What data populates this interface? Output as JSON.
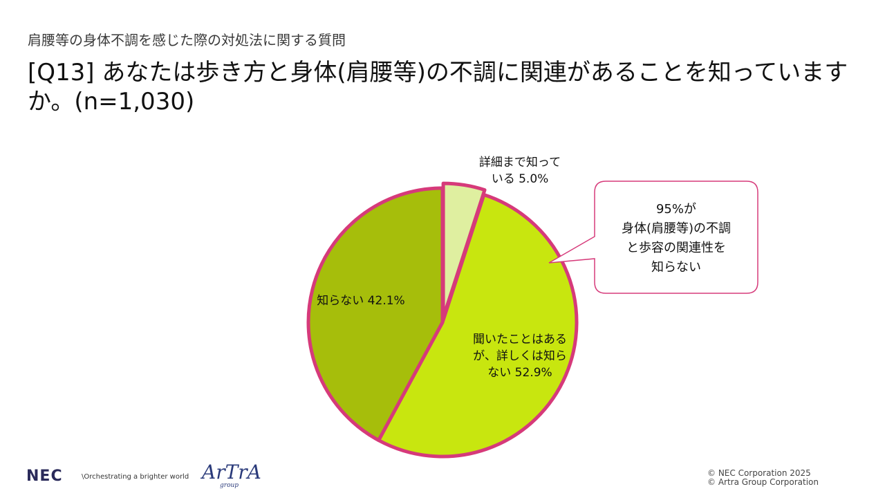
{
  "header": {
    "subtitle": "肩腰等の身体不調を感じた際の対処法に関する質問",
    "title": "[Q13] あなたは歩き方と身体(肩腰等)の不調に関連があることを知っていますか。(n=1,030)"
  },
  "callout": {
    "lines": [
      "95%が",
      "身体(肩腰等)の不調",
      "と歩容の関連性を",
      "知らない"
    ]
  },
  "colors": {
    "accent_border": "#d63a7a",
    "slice_detail": "#dfefa0",
    "slice_heard": "#c8e60f",
    "slice_unknown": "#a6be0b"
  },
  "footer": {
    "logo": "NEC",
    "tagline": "\\Orchestrating a brighter world",
    "brand": "ArTrA",
    "brand_sub": "group",
    "copyright_1": "© NEC Corporation 2025",
    "copyright_2": "© Artra Group Corporation"
  },
  "chart_data": {
    "type": "pie",
    "start": "12 o'clock, clockwise",
    "slices": [
      {
        "label_lines": [
          "詳細まで知って",
          "いる 5.0%"
        ],
        "value": 5.0
      },
      {
        "label_lines": [
          "聞いたことはある",
          "が、詳しくは知ら",
          "ない 52.9%"
        ],
        "value": 52.9
      },
      {
        "label_lines": [
          "知らない 42.1%"
        ],
        "value": 42.1
      }
    ]
  }
}
